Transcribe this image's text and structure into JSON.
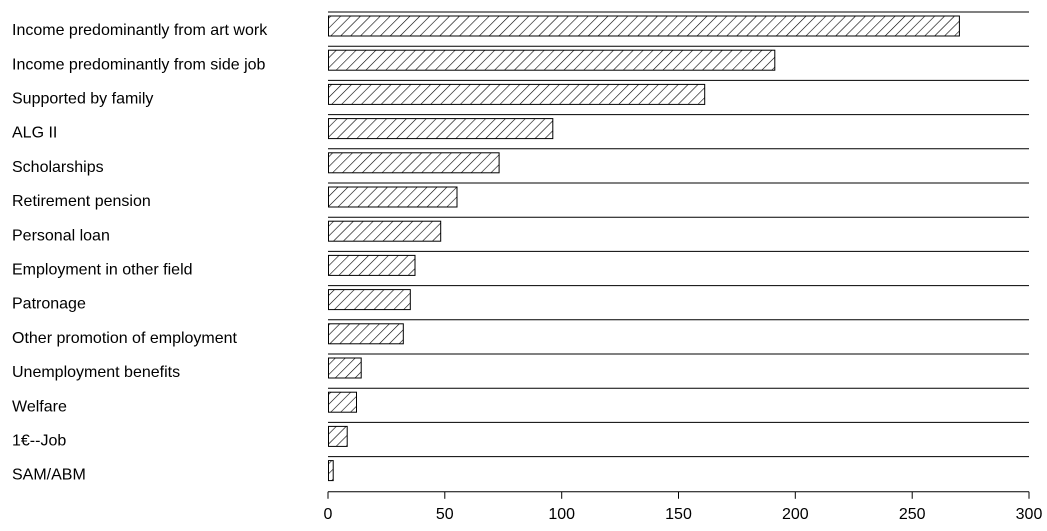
{
  "chart_data": {
    "type": "bar",
    "orientation": "horizontal",
    "categories": [
      "Income predominantly from art work",
      "Income predominantly from side job",
      "Supported by family",
      "ALG II",
      "Scholarships",
      "Retirement pension",
      "Personal loan",
      "Employment in other field",
      "Patronage",
      "Other promotion of employment",
      "Unemployment benefits",
      "Welfare",
      "1€--Job",
      "SAM/ABM"
    ],
    "values": [
      270,
      191,
      161,
      96,
      73,
      55,
      48,
      37,
      35,
      32,
      14,
      12,
      8,
      2
    ],
    "xlim": [
      0,
      300
    ],
    "xticks": [
      "0",
      "50",
      "100",
      "150",
      "200",
      "250",
      "300"
    ],
    "bar_pattern": "diagonal-hatch",
    "bar_color": "#000000",
    "grid": false,
    "legend": "none"
  }
}
